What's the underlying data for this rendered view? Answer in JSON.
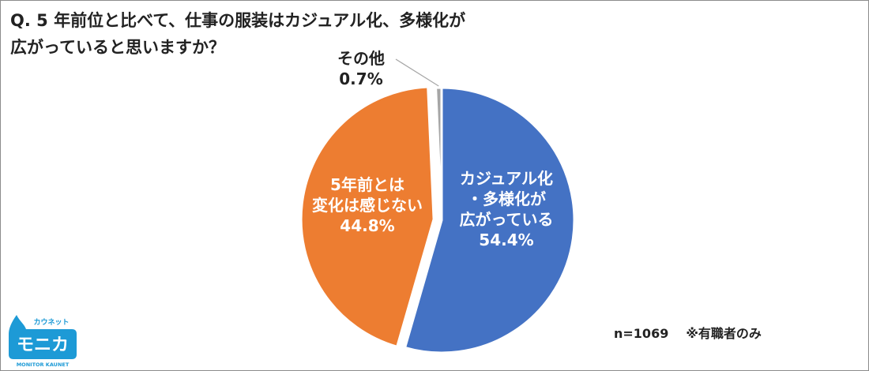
{
  "question": {
    "line1": "Q. 5 年前位と比べて、仕事の服装はカジュアル化、多様化が",
    "line2": "広がっていると思いますか？"
  },
  "chart_data": {
    "type": "pie",
    "title": "Q. 5 年前位と比べて、仕事の服装はカジュアル化、多様化が広がっていると思いますか？",
    "slices": [
      {
        "label_lines": [
          "カジュアル化",
          "・多様化が",
          "広がっている"
        ],
        "value": 54.4,
        "value_label": "54.4%",
        "color": "#4472c4"
      },
      {
        "label_lines": [
          "5年前とは",
          "変化は感じない"
        ],
        "value": 44.8,
        "value_label": "44.8%",
        "color": "#ed7d31"
      },
      {
        "label_lines": [
          "その他"
        ],
        "value": 0.7,
        "value_label": "0.7%",
        "color": "#a5a5a5"
      }
    ],
    "start_angle": "12 o'clock",
    "direction": "clockwise",
    "legend": "none"
  },
  "footnote": {
    "sample": "n=1069",
    "note": "※有職者のみ"
  },
  "logo": {
    "top_text": "カウネット",
    "main_text": "モニカ",
    "bottom_text": "MONITOR KAUNET",
    "color": "#1d9ad6"
  }
}
